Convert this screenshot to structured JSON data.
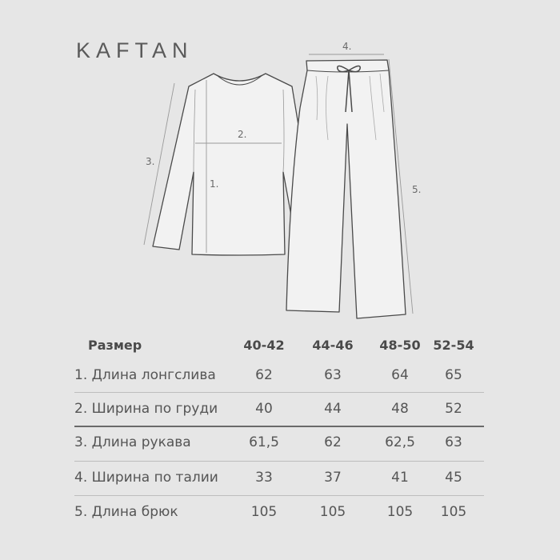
{
  "brand": "KAFTAN",
  "measure_labels": [
    "1.",
    "2.",
    "3.",
    "4.",
    "5."
  ],
  "table": {
    "header": {
      "label": "Размер",
      "sizes": [
        "40-42",
        "44-46",
        "48-50",
        "52-54"
      ]
    },
    "rows": [
      {
        "label": "1.  Длина лонгслива",
        "values": [
          "62",
          "63",
          "64",
          "65"
        ]
      },
      {
        "label": "2. Ширина по груди",
        "values": [
          "40",
          "44",
          "48",
          "52"
        ]
      },
      {
        "label": "3.  Длина рукава",
        "values": [
          "61,5",
          "62",
          "62,5",
          "63"
        ]
      },
      {
        "label": "4. Ширина по талии",
        "values": [
          "33",
          "37",
          "41",
          "45"
        ]
      },
      {
        "label": "5. Длина брюк",
        "values": [
          "105",
          "105",
          "105",
          "105"
        ]
      }
    ]
  }
}
